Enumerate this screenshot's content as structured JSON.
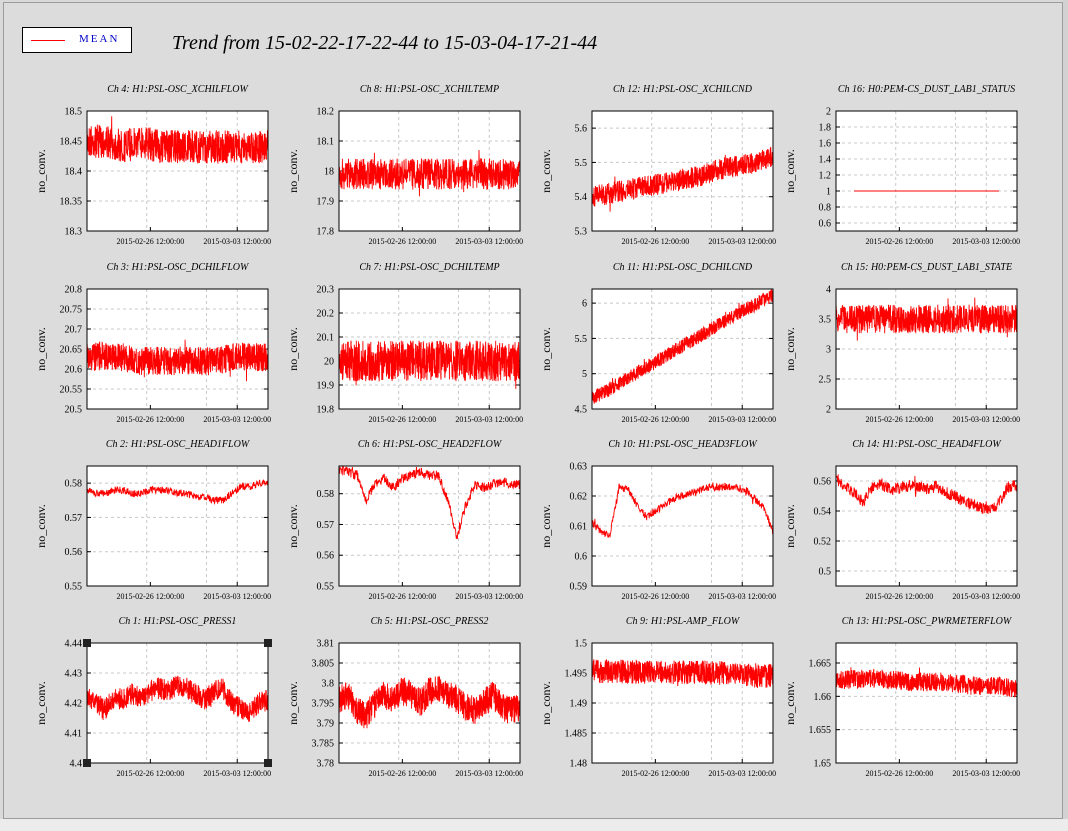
{
  "title": "Trend from 15-02-22-17-22-44 to 15-03-04-17-21-44",
  "legend": {
    "label": "MEAN",
    "color": "#ff0000"
  },
  "colors": {
    "trace": "#ff0000",
    "grid": "#c8c8c8",
    "frame": "#000000",
    "background": "#dcdcdc"
  },
  "chart_data": [
    {
      "type": "line",
      "title": "Ch 4: H1:PSL-OSC_XCHILFLOW",
      "ylabel": "no_conv.",
      "xticks": [
        "2015-02-26 12:00:00",
        "2015-03-03 12:00:00"
      ],
      "yticks": [
        "18.5",
        "18.45",
        "18.4",
        "18.35",
        "18.3"
      ],
      "ylim": [
        18.3,
        18.5
      ],
      "grid": true,
      "series": [
        {
          "x": [
            0,
            1,
            2,
            3,
            4,
            5,
            6,
            7,
            8,
            9,
            10
          ],
          "y": [
            18.45,
            18.45,
            18.44,
            18.45,
            18.44,
            18.44,
            18.44,
            18.44,
            18.44,
            18.44,
            18.44
          ]
        }
      ]
    },
    {
      "type": "line",
      "title": "Ch 8: H1:PSL-OSC_XCHILTEMP",
      "ylabel": "no_conv.",
      "xticks": [
        "2015-02-26 12:00:00",
        "2015-03-03 12:00:00"
      ],
      "yticks": [
        "18.2",
        "18.1",
        "18",
        "17.9",
        "17.8"
      ],
      "ylim": [
        17.8,
        18.2
      ],
      "grid": true,
      "series": [
        {
          "x": [
            0,
            1,
            2,
            3,
            4,
            5,
            6,
            7,
            8,
            9,
            10
          ],
          "y": [
            17.99,
            17.99,
            17.99,
            17.99,
            17.99,
            17.99,
            17.99,
            17.99,
            17.99,
            17.99,
            17.99
          ]
        }
      ]
    },
    {
      "type": "line",
      "title": "Ch 12: H1:PSL-OSC_XCHILCND",
      "ylabel": "no_conv.",
      "xticks": [
        "2015-02-26 12:00:00",
        "2015-03-03 12:00:00"
      ],
      "yticks": [
        "5.6",
        "5.5",
        "5.4",
        "5.3"
      ],
      "ylim": [
        5.3,
        5.65
      ],
      "grid": true,
      "series": [
        {
          "x": [
            0,
            1,
            2,
            3,
            4,
            5,
            6,
            7,
            8,
            9,
            10
          ],
          "y": [
            5.4,
            5.41,
            5.42,
            5.43,
            5.44,
            5.45,
            5.46,
            5.48,
            5.49,
            5.5,
            5.52
          ]
        }
      ]
    },
    {
      "type": "line",
      "title": "Ch 16: H0:PEM-CS_DUST_LAB1_STATUS",
      "ylabel": "no_conv.",
      "xticks": [
        "2015-02-26 12:00:00",
        "2015-03-03 12:00:00"
      ],
      "yticks": [
        "2",
        "1.8",
        "1.6",
        "1.4",
        "1.2",
        "1",
        "0.8",
        "0.6"
      ],
      "ylim": [
        0.5,
        2
      ],
      "grid": true,
      "series": [
        {
          "x": [
            0,
            10
          ],
          "y": [
            1,
            1
          ]
        }
      ]
    },
    {
      "type": "line",
      "title": "Ch 3: H1:PSL-OSC_DCHILFLOW",
      "ylabel": "no_conv.",
      "xticks": [
        "2015-02-26 12:00:00",
        "2015-03-03 12:00:00"
      ],
      "yticks": [
        "20.8",
        "20.75",
        "20.7",
        "20.65",
        "20.6",
        "20.55",
        "20.5"
      ],
      "ylim": [
        20.5,
        20.8
      ],
      "grid": true,
      "series": [
        {
          "x": [
            0,
            1,
            2,
            3,
            4,
            5,
            6,
            7,
            8,
            9,
            10
          ],
          "y": [
            20.63,
            20.63,
            20.63,
            20.62,
            20.62,
            20.62,
            20.62,
            20.62,
            20.63,
            20.63,
            20.63
          ]
        }
      ]
    },
    {
      "type": "line",
      "title": "Ch 7: H1:PSL-OSC_DCHILTEMP",
      "ylabel": "no_conv.",
      "xticks": [
        "2015-02-26 12:00:00",
        "2015-03-03 12:00:00"
      ],
      "yticks": [
        "20.3",
        "20.2",
        "20.1",
        "20",
        "19.9",
        "19.8"
      ],
      "ylim": [
        19.8,
        20.3
      ],
      "grid": true,
      "series": [
        {
          "x": [
            0,
            1,
            2,
            3,
            4,
            5,
            6,
            7,
            8,
            9,
            10
          ],
          "y": [
            20.0,
            20.0,
            20.0,
            20.0,
            20.0,
            20.0,
            20.0,
            20.0,
            20.0,
            20.0,
            20.0
          ]
        }
      ]
    },
    {
      "type": "line",
      "title": "Ch 11: H1:PSL-OSC_DCHILCND",
      "ylabel": "no_conv.",
      "xticks": [
        "2015-02-26 12:00:00",
        "2015-03-03 12:00:00"
      ],
      "yticks": [
        "6",
        "5.5",
        "5",
        "4.5"
      ],
      "ylim": [
        4.5,
        6.2
      ],
      "grid": true,
      "series": [
        {
          "x": [
            0,
            1,
            2,
            3,
            4,
            5,
            6,
            7,
            8,
            9,
            10
          ],
          "y": [
            4.65,
            4.79,
            4.94,
            5.09,
            5.24,
            5.39,
            5.54,
            5.69,
            5.84,
            5.98,
            6.12
          ]
        }
      ]
    },
    {
      "type": "line",
      "title": "Ch 15: H0:PEM-CS_DUST_LAB1_STATE",
      "ylabel": "no_conv.",
      "xticks": [
        "2015-02-26 12:00:00",
        "2015-03-03 12:00:00"
      ],
      "yticks": [
        "4",
        "3.5",
        "3",
        "2.5",
        "2"
      ],
      "ylim": [
        2,
        4
      ],
      "grid": true,
      "series": [
        {
          "x": [
            0,
            1,
            2,
            3,
            4,
            5,
            6,
            7,
            8,
            9,
            10
          ],
          "y": [
            3.5,
            3.5,
            3.5,
            3.5,
            3.5,
            3.5,
            3.5,
            3.5,
            3.5,
            3.5,
            3.5
          ]
        }
      ]
    },
    {
      "type": "line",
      "title": "Ch 2: H1:PSL-OSC_HEAD1FLOW",
      "ylabel": "no_conv.",
      "xticks": [
        "2015-02-26 12:00:00",
        "2015-03-03 12:00:00"
      ],
      "yticks": [
        "0.58",
        "0.57",
        "0.56",
        "0.55"
      ],
      "ylim": [
        0.55,
        0.585
      ],
      "grid": true,
      "series": [
        {
          "x": [
            0,
            0.5,
            1,
            1.5,
            2,
            2.5,
            3,
            3.5,
            4,
            4.5,
            5,
            5.5,
            6,
            6.5,
            7,
            7.5,
            8,
            8.5,
            9,
            9.5,
            10
          ],
          "y": [
            0.578,
            0.577,
            0.577,
            0.578,
            0.578,
            0.577,
            0.577,
            0.578,
            0.578,
            0.578,
            0.577,
            0.577,
            0.576,
            0.576,
            0.575,
            0.575,
            0.577,
            0.579,
            0.579,
            0.58,
            0.58
          ]
        }
      ]
    },
    {
      "type": "line",
      "title": "Ch 6: H1:PSL-OSC_HEAD2FLOW",
      "ylabel": "no_conv.",
      "xticks": [
        "2015-02-26 12:00:00",
        "2015-03-03 12:00:00"
      ],
      "yticks": [
        "0.58",
        "0.57",
        "0.56",
        "0.55"
      ],
      "ylim": [
        0.55,
        0.589
      ],
      "grid": true,
      "series": [
        {
          "x": [
            0,
            0.5,
            1,
            1.5,
            2,
            2.5,
            3,
            3.5,
            4,
            4.5,
            5,
            5.5,
            6,
            6.5,
            7,
            7.5,
            8,
            8.5,
            9,
            9.5,
            10
          ],
          "y": [
            0.588,
            0.587,
            0.586,
            0.578,
            0.583,
            0.585,
            0.582,
            0.585,
            0.586,
            0.587,
            0.586,
            0.586,
            0.578,
            0.566,
            0.576,
            0.583,
            0.582,
            0.583,
            0.584,
            0.583,
            0.583
          ]
        }
      ]
    },
    {
      "type": "line",
      "title": "Ch 10: H1:PSL-OSC_HEAD3FLOW",
      "ylabel": "no_conv.",
      "xticks": [
        "2015-02-26 12:00:00",
        "2015-03-03 12:00:00"
      ],
      "yticks": [
        "0.63",
        "0.62",
        "0.61",
        "0.6",
        "0.59"
      ],
      "ylim": [
        0.59,
        0.63
      ],
      "grid": true,
      "series": [
        {
          "x": [
            0,
            0.5,
            1,
            1.5,
            2,
            2.5,
            3,
            3.5,
            4,
            4.5,
            5,
            5.5,
            6,
            6.5,
            7,
            7.5,
            8,
            8.5,
            9,
            9.5,
            10
          ],
          "y": [
            0.611,
            0.608,
            0.607,
            0.623,
            0.622,
            0.617,
            0.613,
            0.615,
            0.617,
            0.619,
            0.62,
            0.621,
            0.622,
            0.623,
            0.623,
            0.623,
            0.623,
            0.622,
            0.619,
            0.616,
            0.608
          ]
        }
      ]
    },
    {
      "type": "line",
      "title": "Ch 14: H1:PSL-OSC_HEAD4FLOW",
      "ylabel": "no_conv.",
      "xticks": [
        "2015-02-26 12:00:00",
        "2015-03-03 12:00:00"
      ],
      "yticks": [
        "0.56",
        "0.54",
        "0.52",
        "0.5"
      ],
      "ylim": [
        0.49,
        0.57
      ],
      "grid": true,
      "series": [
        {
          "x": [
            0,
            0.5,
            1,
            1.5,
            2,
            2.5,
            3,
            3.5,
            4,
            4.5,
            5,
            5.5,
            6,
            6.5,
            7,
            7.5,
            8,
            8.5,
            9,
            9.5,
            10
          ],
          "y": [
            0.562,
            0.556,
            0.553,
            0.545,
            0.556,
            0.558,
            0.555,
            0.555,
            0.557,
            0.556,
            0.555,
            0.556,
            0.553,
            0.55,
            0.547,
            0.545,
            0.542,
            0.54,
            0.545,
            0.556,
            0.557
          ]
        }
      ]
    },
    {
      "type": "line",
      "title": "Ch 1: H1:PSL-OSC_PRESS1",
      "ylabel": "no_conv.",
      "xticks": [
        "2015-02-26 12:00:00",
        "2015-03-03 12:00:00"
      ],
      "yticks": [
        "4.44",
        "4.43",
        "4.42",
        "4.41",
        "4.4"
      ],
      "ylim": [
        4.4,
        4.44
      ],
      "grid": true,
      "series": [
        {
          "x": [
            0,
            0.5,
            1,
            1.5,
            2,
            2.5,
            3,
            3.5,
            4,
            4.5,
            5,
            5.5,
            6,
            6.5,
            7,
            7.5,
            8,
            8.5,
            9,
            9.5,
            10
          ],
          "y": [
            4.422,
            4.42,
            4.418,
            4.422,
            4.421,
            4.423,
            4.422,
            4.424,
            4.425,
            4.424,
            4.426,
            4.425,
            4.423,
            4.421,
            4.424,
            4.425,
            4.42,
            4.418,
            4.417,
            4.42,
            4.421
          ]
        }
      ]
    },
    {
      "type": "line",
      "title": "Ch 5: H1:PSL-OSC_PRESS2",
      "ylabel": "no_conv.",
      "xticks": [
        "2015-02-26 12:00:00",
        "2015-03-03 12:00:00"
      ],
      "yticks": [
        "3.81",
        "3.805",
        "3.8",
        "3.795",
        "3.79",
        "3.785",
        "3.78"
      ],
      "ylim": [
        3.78,
        3.81
      ],
      "grid": true,
      "series": [
        {
          "x": [
            0,
            0.5,
            1,
            1.5,
            2,
            2.5,
            3,
            3.5,
            4,
            4.5,
            5,
            5.5,
            6,
            6.5,
            7,
            7.5,
            8,
            8.5,
            9,
            9.5,
            10
          ],
          "y": [
            3.796,
            3.797,
            3.793,
            3.792,
            3.795,
            3.797,
            3.796,
            3.798,
            3.797,
            3.795,
            3.798,
            3.799,
            3.797,
            3.796,
            3.794,
            3.793,
            3.795,
            3.797,
            3.794,
            3.793,
            3.794
          ]
        }
      ]
    },
    {
      "type": "line",
      "title": "Ch 9: H1:PSL-AMP_FLOW",
      "ylabel": "no_conv.",
      "xticks": [
        "2015-02-26 12:00:00",
        "2015-03-03 12:00:00"
      ],
      "yticks": [
        "1.5",
        "1.495",
        "1.49",
        "1.485",
        "1.48"
      ],
      "ylim": [
        1.48,
        1.5
      ],
      "grid": true,
      "series": [
        {
          "x": [
            0,
            1,
            2,
            3,
            4,
            5,
            6,
            7,
            8,
            9,
            10
          ],
          "y": [
            1.4953,
            1.4953,
            1.4952,
            1.4952,
            1.4952,
            1.4951,
            1.4951,
            1.495,
            1.4948,
            1.4945,
            1.4945
          ]
        }
      ]
    },
    {
      "type": "line",
      "title": "Ch 13: H1:PSL-OSC_PWRMETERFLOW",
      "ylabel": "no_conv.",
      "xticks": [
        "2015-02-26 12:00:00",
        "2015-03-03 12:00:00"
      ],
      "yticks": [
        "1.665",
        "1.66",
        "1.655",
        "1.65"
      ],
      "ylim": [
        1.65,
        1.668
      ],
      "grid": true,
      "series": [
        {
          "x": [
            0,
            1,
            2,
            3,
            4,
            5,
            6,
            7,
            8,
            9,
            10
          ],
          "y": [
            1.6625,
            1.6625,
            1.6627,
            1.6625,
            1.6622,
            1.6622,
            1.6622,
            1.6618,
            1.6615,
            1.6615,
            1.661
          ]
        }
      ]
    }
  ]
}
